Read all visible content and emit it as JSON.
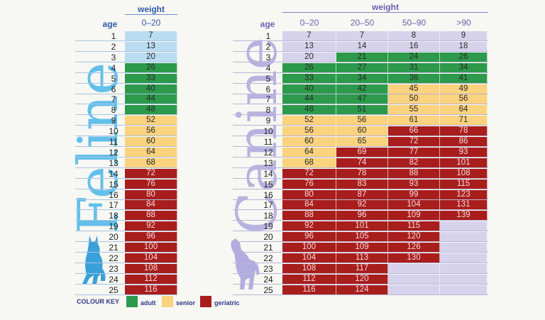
{
  "colors": {
    "adult": "#2c9a4a",
    "senior": "#fbd27d",
    "geriatric": "#a81e1d",
    "empty": "#d7d2ec",
    "feline_light": "#b9dcf1",
    "header_blue": "#2e5aa8",
    "canine_header": "#6d5fb0"
  },
  "feline": {
    "title": "Feline",
    "age_label": "age",
    "weight_label": "weight",
    "weight_columns": [
      "0–20"
    ],
    "ages": [
      1,
      2,
      3,
      4,
      5,
      6,
      7,
      8,
      9,
      10,
      11,
      12,
      13,
      14,
      15,
      16,
      17,
      18,
      19,
      20,
      21,
      22,
      23,
      24,
      25
    ],
    "rows": [
      [
        {
          "v": "7",
          "c": "light"
        }
      ],
      [
        {
          "v": "13",
          "c": "light"
        }
      ],
      [
        {
          "v": "20",
          "c": "light"
        }
      ],
      [
        {
          "v": "26",
          "c": "adult"
        }
      ],
      [
        {
          "v": "33",
          "c": "adult"
        }
      ],
      [
        {
          "v": "40",
          "c": "adult"
        }
      ],
      [
        {
          "v": "44",
          "c": "adult"
        }
      ],
      [
        {
          "v": "48",
          "c": "adult"
        }
      ],
      [
        {
          "v": "52",
          "c": "senior"
        }
      ],
      [
        {
          "v": "56",
          "c": "senior"
        }
      ],
      [
        {
          "v": "60",
          "c": "senior"
        }
      ],
      [
        {
          "v": "64",
          "c": "senior"
        }
      ],
      [
        {
          "v": "68",
          "c": "senior"
        }
      ],
      [
        {
          "v": "72",
          "c": "geriatric"
        }
      ],
      [
        {
          "v": "76",
          "c": "geriatric"
        }
      ],
      [
        {
          "v": "80",
          "c": "geriatric"
        }
      ],
      [
        {
          "v": "84",
          "c": "geriatric"
        }
      ],
      [
        {
          "v": "88",
          "c": "geriatric"
        }
      ],
      [
        {
          "v": "92",
          "c": "geriatric"
        }
      ],
      [
        {
          "v": "96",
          "c": "geriatric"
        }
      ],
      [
        {
          "v": "100",
          "c": "geriatric"
        }
      ],
      [
        {
          "v": "104",
          "c": "geriatric"
        }
      ],
      [
        {
          "v": "108",
          "c": "geriatric"
        }
      ],
      [
        {
          "v": "112",
          "c": "geriatric"
        }
      ],
      [
        {
          "v": "116",
          "c": "geriatric"
        }
      ]
    ]
  },
  "canine": {
    "title": "Canine",
    "age_label": "age",
    "weight_label": "weight",
    "weight_columns": [
      "0–20",
      "20–50",
      "50–90",
      ">90"
    ],
    "ages": [
      1,
      2,
      3,
      4,
      5,
      6,
      7,
      8,
      9,
      10,
      11,
      12,
      13,
      14,
      15,
      16,
      17,
      18,
      19,
      20,
      21,
      22,
      23,
      24,
      25
    ],
    "rows": [
      [
        {
          "v": "7",
          "c": "empty"
        },
        {
          "v": "7",
          "c": "empty"
        },
        {
          "v": "8",
          "c": "empty"
        },
        {
          "v": "9",
          "c": "empty"
        }
      ],
      [
        {
          "v": "13",
          "c": "empty"
        },
        {
          "v": "14",
          "c": "empty"
        },
        {
          "v": "16",
          "c": "empty"
        },
        {
          "v": "18",
          "c": "empty"
        }
      ],
      [
        {
          "v": "20",
          "c": "empty"
        },
        {
          "v": "21",
          "c": "adult"
        },
        {
          "v": "24",
          "c": "adult"
        },
        {
          "v": "26",
          "c": "adult"
        }
      ],
      [
        {
          "v": "26",
          "c": "adult"
        },
        {
          "v": "27",
          "c": "adult"
        },
        {
          "v": "31",
          "c": "adult"
        },
        {
          "v": "34",
          "c": "adult"
        }
      ],
      [
        {
          "v": "33",
          "c": "adult"
        },
        {
          "v": "34",
          "c": "adult"
        },
        {
          "v": "38",
          "c": "adult"
        },
        {
          "v": "41",
          "c": "adult"
        }
      ],
      [
        {
          "v": "40",
          "c": "adult"
        },
        {
          "v": "42",
          "c": "adult"
        },
        {
          "v": "45",
          "c": "senior"
        },
        {
          "v": "49",
          "c": "senior"
        }
      ],
      [
        {
          "v": "44",
          "c": "adult"
        },
        {
          "v": "47",
          "c": "adult"
        },
        {
          "v": "50",
          "c": "senior"
        },
        {
          "v": "56",
          "c": "senior"
        }
      ],
      [
        {
          "v": "48",
          "c": "adult"
        },
        {
          "v": "51",
          "c": "adult"
        },
        {
          "v": "55",
          "c": "senior"
        },
        {
          "v": "64",
          "c": "senior"
        }
      ],
      [
        {
          "v": "52",
          "c": "senior"
        },
        {
          "v": "56",
          "c": "senior"
        },
        {
          "v": "61",
          "c": "senior"
        },
        {
          "v": "71",
          "c": "senior"
        }
      ],
      [
        {
          "v": "56",
          "c": "senior"
        },
        {
          "v": "60",
          "c": "senior"
        },
        {
          "v": "66",
          "c": "geriatric"
        },
        {
          "v": "78",
          "c": "geriatric"
        }
      ],
      [
        {
          "v": "60",
          "c": "senior"
        },
        {
          "v": "65",
          "c": "senior"
        },
        {
          "v": "72",
          "c": "geriatric"
        },
        {
          "v": "86",
          "c": "geriatric"
        }
      ],
      [
        {
          "v": "64",
          "c": "senior"
        },
        {
          "v": "69",
          "c": "geriatric"
        },
        {
          "v": "77",
          "c": "geriatric"
        },
        {
          "v": "93",
          "c": "geriatric"
        }
      ],
      [
        {
          "v": "68",
          "c": "senior"
        },
        {
          "v": "74",
          "c": "geriatric"
        },
        {
          "v": "82",
          "c": "geriatric"
        },
        {
          "v": "101",
          "c": "geriatric"
        }
      ],
      [
        {
          "v": "72",
          "c": "geriatric"
        },
        {
          "v": "78",
          "c": "geriatric"
        },
        {
          "v": "88",
          "c": "geriatric"
        },
        {
          "v": "108",
          "c": "geriatric"
        }
      ],
      [
        {
          "v": "76",
          "c": "geriatric"
        },
        {
          "v": "83",
          "c": "geriatric"
        },
        {
          "v": "93",
          "c": "geriatric"
        },
        {
          "v": "115",
          "c": "geriatric"
        }
      ],
      [
        {
          "v": "80",
          "c": "geriatric"
        },
        {
          "v": "87",
          "c": "geriatric"
        },
        {
          "v": "99",
          "c": "geriatric"
        },
        {
          "v": "123",
          "c": "geriatric"
        }
      ],
      [
        {
          "v": "84",
          "c": "geriatric"
        },
        {
          "v": "92",
          "c": "geriatric"
        },
        {
          "v": "104",
          "c": "geriatric"
        },
        {
          "v": "131",
          "c": "geriatric"
        }
      ],
      [
        {
          "v": "88",
          "c": "geriatric"
        },
        {
          "v": "96",
          "c": "geriatric"
        },
        {
          "v": "109",
          "c": "geriatric"
        },
        {
          "v": "139",
          "c": "geriatric"
        }
      ],
      [
        {
          "v": "92",
          "c": "geriatric"
        },
        {
          "v": "101",
          "c": "geriatric"
        },
        {
          "v": "115",
          "c": "geriatric"
        },
        {
          "v": "",
          "c": "empty"
        }
      ],
      [
        {
          "v": "96",
          "c": "geriatric"
        },
        {
          "v": "105",
          "c": "geriatric"
        },
        {
          "v": "120",
          "c": "geriatric"
        },
        {
          "v": "",
          "c": "empty"
        }
      ],
      [
        {
          "v": "100",
          "c": "geriatric"
        },
        {
          "v": "109",
          "c": "geriatric"
        },
        {
          "v": "126",
          "c": "geriatric"
        },
        {
          "v": "",
          "c": "empty"
        }
      ],
      [
        {
          "v": "104",
          "c": "geriatric"
        },
        {
          "v": "113",
          "c": "geriatric"
        },
        {
          "v": "130",
          "c": "geriatric"
        },
        {
          "v": "",
          "c": "empty"
        }
      ],
      [
        {
          "v": "108",
          "c": "geriatric"
        },
        {
          "v": "117",
          "c": "geriatric"
        },
        {
          "v": "",
          "c": "empty"
        },
        {
          "v": "",
          "c": "empty"
        }
      ],
      [
        {
          "v": "112",
          "c": "geriatric"
        },
        {
          "v": "120",
          "c": "geriatric"
        },
        {
          "v": "",
          "c": "empty"
        },
        {
          "v": "",
          "c": "empty"
        }
      ],
      [
        {
          "v": "116",
          "c": "geriatric"
        },
        {
          "v": "124",
          "c": "geriatric"
        },
        {
          "v": "",
          "c": "empty"
        },
        {
          "v": "",
          "c": "empty"
        }
      ]
    ]
  },
  "key": {
    "title": "COLOUR KEY",
    "items": [
      {
        "label": "adult",
        "color": "adult"
      },
      {
        "label": "senior",
        "color": "senior"
      },
      {
        "label": "geriatric",
        "color": "geriatric"
      }
    ]
  }
}
